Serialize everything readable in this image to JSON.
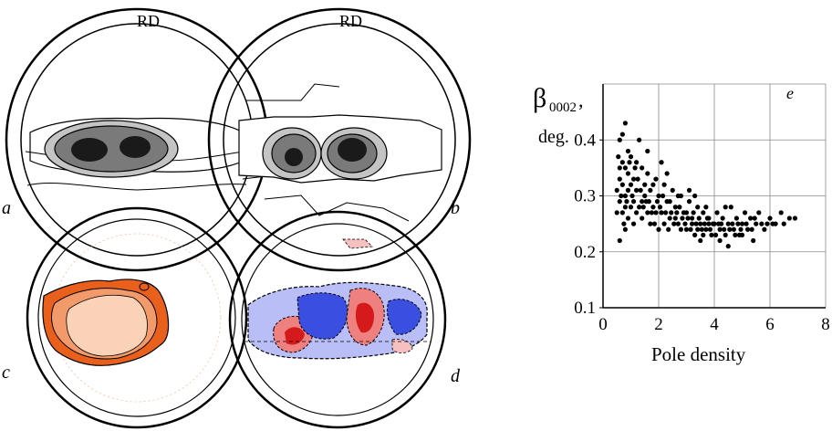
{
  "figure": {
    "rd_labels": [
      "RD",
      "RD"
    ],
    "panel_letters": [
      "a",
      "b",
      "c",
      "d",
      "e"
    ]
  },
  "colors": {
    "grey_dark": "#1a1a1a",
    "grey_mid": "#7a7a7a",
    "grey_light": "#c4c4c4",
    "orange_dark": "#e8601c",
    "orange_mid": "#f29a6a",
    "orange_light": "#fad2b8",
    "blue_dark": "#3a4fe0",
    "blue_light": "#b9bff6",
    "red_dark": "#d41a1a",
    "red_mid": "#ee8080",
    "red_light": "#f6c0c0"
  },
  "chart_data": {
    "type": "scatter",
    "title": "",
    "panel_letter": "e",
    "ylabel_main": "β",
    "ylabel_sub": "0002",
    "ylabel_suffix": ",",
    "ylabel_line2": "deg.",
    "xlabel": "Pole density",
    "xlim": [
      0,
      8
    ],
    "ylim": [
      0.1,
      0.5
    ],
    "xticks": [
      "0",
      "2",
      "4",
      "6",
      "8"
    ],
    "yticks": [
      "0.1",
      "0.2",
      "0.3",
      "0.4"
    ],
    "grid": true,
    "point_color": "#000000",
    "points": [
      [
        0.6,
        0.4
      ],
      [
        0.7,
        0.41
      ],
      [
        0.8,
        0.43
      ],
      [
        0.9,
        0.38
      ],
      [
        0.7,
        0.36
      ],
      [
        0.6,
        0.33
      ],
      [
        0.5,
        0.31
      ],
      [
        0.6,
        0.29
      ],
      [
        0.7,
        0.27
      ],
      [
        0.8,
        0.3
      ],
      [
        0.9,
        0.34
      ],
      [
        1.0,
        0.37
      ],
      [
        1.1,
        0.33
      ],
      [
        1.2,
        0.31
      ],
      [
        1.0,
        0.28
      ],
      [
        0.9,
        0.26
      ],
      [
        0.8,
        0.24
      ],
      [
        0.6,
        0.22
      ],
      [
        0.5,
        0.27
      ],
      [
        0.6,
        0.35
      ],
      [
        0.7,
        0.32
      ],
      [
        0.8,
        0.28
      ],
      [
        0.9,
        0.31
      ],
      [
        1.1,
        0.29
      ],
      [
        1.2,
        0.36
      ],
      [
        1.3,
        0.4
      ],
      [
        1.4,
        0.35
      ],
      [
        1.5,
        0.32
      ],
      [
        1.3,
        0.28
      ],
      [
        1.4,
        0.26
      ],
      [
        1.5,
        0.3
      ],
      [
        1.6,
        0.34
      ],
      [
        1.7,
        0.31
      ],
      [
        1.8,
        0.28
      ],
      [
        1.6,
        0.27
      ],
      [
        1.7,
        0.25
      ],
      [
        1.9,
        0.33
      ],
      [
        2.0,
        0.3
      ],
      [
        2.1,
        0.27
      ],
      [
        2.2,
        0.32
      ],
      [
        2.3,
        0.29
      ],
      [
        2.4,
        0.26
      ],
      [
        2.0,
        0.24
      ],
      [
        2.2,
        0.25
      ],
      [
        2.5,
        0.31
      ],
      [
        2.6,
        0.28
      ],
      [
        2.7,
        0.25
      ],
      [
        2.8,
        0.3
      ],
      [
        2.9,
        0.27
      ],
      [
        3.0,
        0.24
      ],
      [
        3.1,
        0.29
      ],
      [
        3.2,
        0.26
      ],
      [
        3.3,
        0.23
      ],
      [
        3.4,
        0.28
      ],
      [
        3.5,
        0.25
      ],
      [
        3.6,
        0.27
      ],
      [
        3.7,
        0.24
      ],
      [
        3.8,
        0.26
      ],
      [
        3.9,
        0.23
      ],
      [
        4.0,
        0.25
      ],
      [
        4.1,
        0.27
      ],
      [
        4.2,
        0.24
      ],
      [
        4.3,
        0.26
      ],
      [
        4.4,
        0.23
      ],
      [
        4.5,
        0.25
      ],
      [
        4.6,
        0.28
      ],
      [
        4.7,
        0.24
      ],
      [
        4.8,
        0.26
      ],
      [
        4.9,
        0.23
      ],
      [
        5.0,
        0.25
      ],
      [
        5.1,
        0.27
      ],
      [
        5.2,
        0.24
      ],
      [
        5.3,
        0.26
      ],
      [
        5.4,
        0.22
      ],
      [
        5.5,
        0.25
      ],
      [
        5.6,
        0.27
      ],
      [
        5.8,
        0.24
      ],
      [
        6.0,
        0.26
      ],
      [
        6.2,
        0.25
      ],
      [
        6.4,
        0.27
      ],
      [
        6.5,
        0.25
      ],
      [
        6.7,
        0.26
      ],
      [
        6.9,
        0.26
      ],
      [
        3.0,
        0.27
      ],
      [
        3.2,
        0.25
      ],
      [
        3.4,
        0.24
      ],
      [
        3.6,
        0.23
      ],
      [
        3.8,
        0.25
      ],
      [
        2.4,
        0.29
      ],
      [
        2.6,
        0.26
      ],
      [
        1.9,
        0.27
      ],
      [
        1.8,
        0.32
      ],
      [
        1.2,
        0.27
      ],
      [
        1.1,
        0.25
      ],
      [
        1.0,
        0.32
      ],
      [
        0.8,
        0.35
      ],
      [
        1.4,
        0.29
      ],
      [
        2.8,
        0.24
      ],
      [
        3.5,
        0.22
      ],
      [
        4.2,
        0.22
      ],
      [
        4.5,
        0.21
      ],
      [
        5.0,
        0.23
      ],
      [
        3.1,
        0.31
      ],
      [
        3.3,
        0.3
      ],
      [
        2.1,
        0.36
      ],
      [
        1.6,
        0.38
      ],
      [
        2.3,
        0.34
      ],
      [
        2.7,
        0.3
      ],
      [
        3.7,
        0.28
      ],
      [
        4.4,
        0.28
      ],
      [
        0.55,
        0.37
      ],
      [
        0.65,
        0.3
      ],
      [
        0.75,
        0.25
      ],
      [
        0.85,
        0.29
      ],
      [
        0.95,
        0.36
      ],
      [
        1.05,
        0.3
      ],
      [
        1.15,
        0.35
      ],
      [
        1.25,
        0.33
      ],
      [
        1.35,
        0.31
      ],
      [
        1.45,
        0.28
      ],
      [
        1.55,
        0.29
      ],
      [
        1.65,
        0.29
      ],
      [
        1.75,
        0.27
      ],
      [
        1.85,
        0.25
      ],
      [
        1.95,
        0.29
      ],
      [
        2.05,
        0.28
      ],
      [
        2.15,
        0.3
      ],
      [
        2.25,
        0.27
      ],
      [
        2.35,
        0.24
      ],
      [
        2.45,
        0.27
      ],
      [
        2.55,
        0.25
      ],
      [
        2.65,
        0.27
      ],
      [
        2.75,
        0.28
      ],
      [
        2.85,
        0.26
      ],
      [
        2.95,
        0.25
      ],
      [
        3.05,
        0.26
      ],
      [
        3.15,
        0.24
      ],
      [
        3.25,
        0.27
      ],
      [
        3.35,
        0.25
      ],
      [
        3.45,
        0.26
      ],
      [
        3.55,
        0.24
      ],
      [
        3.65,
        0.25
      ],
      [
        3.75,
        0.26
      ],
      [
        3.85,
        0.24
      ],
      [
        3.95,
        0.25
      ],
      [
        4.05,
        0.23
      ],
      [
        4.15,
        0.25
      ],
      [
        4.25,
        0.25
      ],
      [
        4.35,
        0.24
      ],
      [
        4.55,
        0.24
      ],
      [
        4.65,
        0.25
      ],
      [
        4.75,
        0.23
      ],
      [
        4.85,
        0.25
      ],
      [
        4.95,
        0.24
      ],
      [
        5.15,
        0.25
      ],
      [
        5.35,
        0.24
      ],
      [
        5.45,
        0.26
      ],
      [
        5.7,
        0.25
      ],
      [
        5.9,
        0.25
      ],
      [
        6.1,
        0.25
      ]
    ]
  }
}
